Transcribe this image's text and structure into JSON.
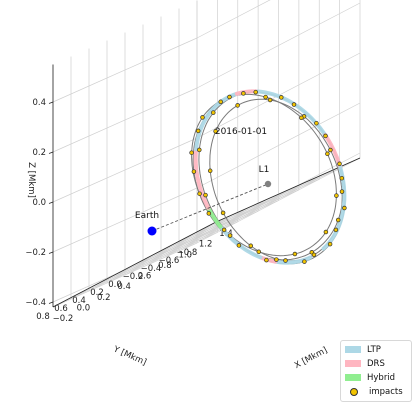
{
  "chart_data": {
    "type": "line3d",
    "xlabel": "X [Mkm]",
    "ylabel": "Y [Mkm]",
    "zlabel": "Z [Mkm]",
    "xlim": [
      -0.2,
      1.4
    ],
    "ylim": [
      -0.8,
      0.8
    ],
    "zlim": [
      -0.4,
      0.4
    ],
    "x_ticks": [
      "−0.2",
      "0.0",
      "0.2",
      "0.4",
      "0.6",
      "0.8",
      "1.0",
      "1.2",
      "1.4"
    ],
    "y_ticks": [
      "0.8",
      "0.6",
      "0.4",
      "0.2",
      "0.0",
      "−0.2",
      "−0.4",
      "−0.6",
      "−0.8"
    ],
    "z_ticks": [
      "0.4",
      "0.2",
      "0.0",
      "−0.2",
      "−0.4"
    ],
    "legend": [
      {
        "name": "LTP",
        "color": "#add8e6"
      },
      {
        "name": "DRS",
        "color": "#ffb6c1"
      },
      {
        "name": "Hybrid",
        "color": "#90ee90"
      },
      {
        "name": "impacts",
        "color": "#f2c400"
      }
    ],
    "annotations": {
      "date": "2016-01-01",
      "l1": "L1",
      "earth": "Earth"
    },
    "points": {
      "earth": {
        "x": 0.0,
        "y": 0.0,
        "z": 0.0,
        "color": "#0000ff"
      },
      "l1": {
        "x": 1.5,
        "y": 0.0,
        "z": 0.0,
        "color": "#808080"
      }
    },
    "orbit": {
      "center": [
        1.5,
        0.0,
        0.0
      ],
      "description": "halo orbit around L1, approx. radius 0.6 Mkm in y, 0.4 Mkm in z"
    },
    "grid": true,
    "legend_position": "lower right"
  }
}
